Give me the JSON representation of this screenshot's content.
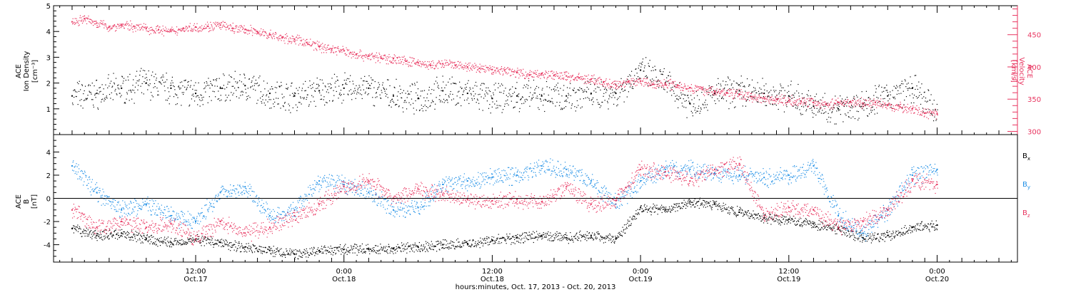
{
  "chart_data": [
    {
      "type": "scatter",
      "panel": "density-velocity",
      "ylabel_left_lines": [
        "ACE",
        "Ion Density",
        "[cm⁻³]"
      ],
      "ylabel_right_lines": [
        "ACE",
        "Velocity",
        "[km/s]"
      ],
      "ylim_left": [
        0,
        5
      ],
      "ylim_right": [
        295,
        495
      ],
      "yticks_left": [
        "1",
        "2",
        "3",
        "4",
        "5"
      ],
      "yticks_right": [
        "300",
        "350",
        "400",
        "450"
      ],
      "colors": {
        "density": "#000000",
        "velocity": "#e8345f"
      },
      "series": [
        {
          "name": "Ion Density",
          "axis": "left",
          "x_hours": [
            0,
            2,
            4,
            6,
            8,
            10,
            12,
            14,
            16,
            18,
            20,
            22,
            24,
            26,
            28,
            30,
            32,
            34,
            36,
            38,
            40,
            42,
            44,
            46,
            48,
            50,
            52,
            54,
            56,
            58,
            60,
            62,
            64,
            66,
            68,
            70
          ],
          "values": [
            1.5,
            1.6,
            1.8,
            2.0,
            1.8,
            1.6,
            1.8,
            1.9,
            1.6,
            1.5,
            1.7,
            1.8,
            1.8,
            1.5,
            1.4,
            1.7,
            1.6,
            1.4,
            1.5,
            1.5,
            1.5,
            1.6,
            1.6,
            2.5,
            2.0,
            1.2,
            1.6,
            1.7,
            1.6,
            1.5,
            1.1,
            1.0,
            1.2,
            1.5,
            1.8,
            0.8
          ]
        },
        {
          "name": "Velocity",
          "axis": "right",
          "x_hours": [
            0,
            1,
            2,
            3,
            4,
            5,
            6,
            7,
            8,
            9,
            10,
            11,
            12,
            13,
            14,
            15,
            16,
            17,
            18,
            19,
            20,
            21,
            22,
            23,
            24,
            25,
            26,
            27,
            28,
            29,
            30,
            31,
            32,
            33,
            34,
            35,
            36,
            37,
            38,
            39,
            40,
            41,
            42,
            43,
            44,
            45,
            46,
            47,
            48,
            49,
            50,
            51,
            52,
            53,
            54,
            55,
            56,
            57,
            58,
            59,
            60,
            61,
            62,
            63,
            64,
            65,
            66,
            67,
            68,
            69,
            70
          ],
          "values": [
            470,
            475,
            468,
            462,
            465,
            463,
            460,
            458,
            455,
            460,
            462,
            463,
            465,
            460,
            458,
            455,
            450,
            445,
            443,
            438,
            432,
            428,
            425,
            420,
            417,
            414,
            413,
            409,
            407,
            402,
            405,
            403,
            400,
            398,
            396,
            395,
            392,
            388,
            390,
            387,
            386,
            383,
            381,
            376,
            372,
            378,
            378,
            373,
            375,
            372,
            368,
            365,
            362,
            360,
            358,
            354,
            352,
            350,
            348,
            347,
            345,
            342,
            345,
            346,
            344,
            345,
            340,
            338,
            335,
            328,
            327
          ]
        }
      ]
    },
    {
      "type": "scatter",
      "panel": "magnetic-field",
      "ylabel_lines": [
        "ACE",
        "B",
        "[nT]"
      ],
      "ylim": [
        -5.5,
        5.5
      ],
      "yticks": [
        "-4",
        "-2",
        "0",
        "2",
        "4"
      ],
      "legend": [
        "Bx",
        "By",
        "Bz"
      ],
      "colors": {
        "Bx": "#000000",
        "By": "#1f8fe6",
        "Bz": "#e8345f"
      },
      "series": [
        {
          "name": "Bx",
          "x_hours": [
            0,
            2,
            4,
            6,
            8,
            10,
            12,
            14,
            16,
            18,
            20,
            22,
            24,
            26,
            28,
            30,
            32,
            34,
            36,
            38,
            40,
            42,
            44,
            46,
            48,
            50,
            52,
            54,
            56,
            58,
            60,
            62,
            64,
            66,
            68,
            70
          ],
          "values": [
            -2.6,
            -3.2,
            -3.0,
            -3.5,
            -3.8,
            -3.5,
            -3.8,
            -4.2,
            -4.5,
            -4.8,
            -4.5,
            -4.4,
            -4.4,
            -4.3,
            -4.2,
            -4.0,
            -3.9,
            -3.6,
            -3.4,
            -3.2,
            -3.4,
            -3.2,
            -3.5,
            -0.8,
            -1.0,
            -0.3,
            -0.5,
            -1.2,
            -1.7,
            -1.8,
            -2.2,
            -2.6,
            -3.4,
            -3.2,
            -2.5,
            -2.3
          ]
        },
        {
          "name": "By",
          "x_hours": [
            0,
            2,
            4,
            6,
            8,
            10,
            12,
            14,
            16,
            18,
            20,
            22,
            24,
            26,
            28,
            30,
            32,
            34,
            36,
            38,
            40,
            42,
            44,
            46,
            48,
            50,
            52,
            54,
            56,
            58,
            60,
            62,
            64,
            66,
            68,
            70
          ],
          "values": [
            2.8,
            0.5,
            -1.0,
            -0.5,
            -1.5,
            -2.0,
            0.5,
            1.0,
            -1.5,
            -1.0,
            1.5,
            1.2,
            0.5,
            -1.0,
            -0.8,
            1.2,
            1.5,
            1.8,
            2.0,
            2.8,
            2.5,
            1.5,
            -0.5,
            1.5,
            2.5,
            2.5,
            2.2,
            2.0,
            1.8,
            2.0,
            2.8,
            -1.5,
            -3.0,
            -1.0,
            2.0,
            2.5
          ]
        },
        {
          "name": "Bz",
          "x_hours": [
            0,
            2,
            4,
            6,
            8,
            10,
            12,
            14,
            16,
            18,
            20,
            22,
            24,
            26,
            28,
            30,
            32,
            34,
            36,
            38,
            40,
            42,
            44,
            46,
            48,
            50,
            52,
            54,
            56,
            58,
            60,
            62,
            64,
            66,
            68,
            70
          ],
          "values": [
            -1.0,
            -2.5,
            -2.0,
            -2.5,
            -2.2,
            -3.5,
            -2.0,
            -3.0,
            -2.5,
            -1.5,
            -0.5,
            1.0,
            1.5,
            0.0,
            0.8,
            0.3,
            -0.1,
            -0.2,
            -0.1,
            -0.3,
            1.0,
            -0.5,
            -0.2,
            2.5,
            2.3,
            1.5,
            2.5,
            3.0,
            -1.5,
            -0.8,
            -1.0,
            -2.5,
            -2.0,
            -1.0,
            1.5,
            1.2
          ]
        }
      ]
    }
  ],
  "xaxis": {
    "range_hours": [
      -1.5,
      76.5
    ],
    "ticks": [
      {
        "hours": 10,
        "time": "12:00",
        "date": "Oct.17"
      },
      {
        "hours": 22,
        "time": "0:00",
        "date": "Oct.18"
      },
      {
        "hours": 34,
        "time": "12:00",
        "date": "Oct.18"
      },
      {
        "hours": 46,
        "time": "0:00",
        "date": "Oct.19"
      },
      {
        "hours": 58,
        "time": "12:00",
        "date": "Oct.19"
      },
      {
        "hours": 70,
        "time": "0:00",
        "date": "Oct.20"
      }
    ],
    "label": "hours:minutes, Oct. 17, 2013 - Oct. 20, 2013"
  },
  "legend_labels": {
    "bx": "B",
    "bx_sub": "x",
    "by": "B",
    "by_sub": "y",
    "bz": "B",
    "bz_sub": "z"
  }
}
